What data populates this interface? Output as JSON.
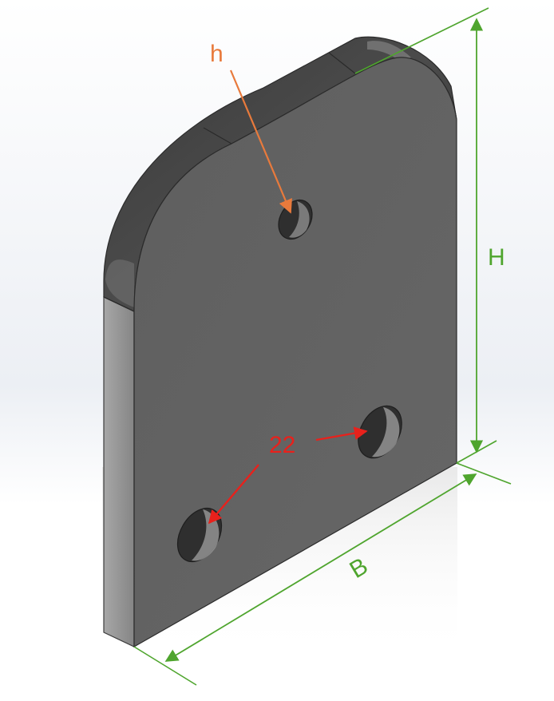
{
  "labels": {
    "hole_top": "h",
    "hole_bottom": "22",
    "height": "H",
    "width": "B"
  },
  "colors": {
    "dimension": "#4fa52e",
    "hole_top_callout": "#e87a3c",
    "hole_bottom_callout": "#e8211c",
    "part_face": "#636363",
    "part_edge": "#3c3c3c"
  }
}
